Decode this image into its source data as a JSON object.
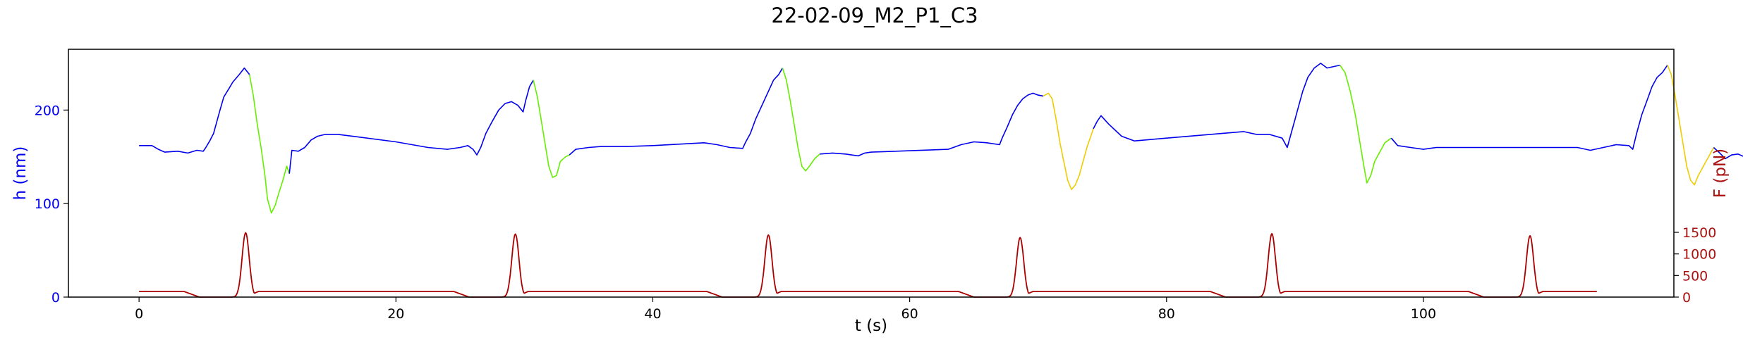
{
  "chart_data": {
    "type": "line",
    "title": "22-02-09_M2_P1_C3",
    "xlabel": "t (s)",
    "ylabel_left": "h (nm)",
    "ylabel_right": "F (pN)",
    "xlim": [
      -5.5,
      119.5
    ],
    "ylim_left": [
      0,
      265
    ],
    "ylim_right": [
      0,
      5740
    ],
    "x_ticks": [
      0,
      20,
      40,
      60,
      80,
      100
    ],
    "y_ticks_left": [
      0,
      100,
      200
    ],
    "y_ticks_right": [
      0,
      500,
      1000,
      1500
    ],
    "grid": false,
    "colors": {
      "height": "#0000ee",
      "force": "#aa0000",
      "green_segment": "#66ee00",
      "yellow_segment": "#eecc00",
      "left_axis": "#0000ee",
      "right_axis": "#aa1111"
    },
    "series": [
      {
        "axis": "left",
        "segments": [
          {
            "color": "blue",
            "points": [
              [
                0,
                162
              ],
              [
                1,
                162
              ],
              [
                1.5,
                158
              ],
              [
                2,
                155
              ],
              [
                3,
                156
              ],
              [
                3.8,
                154
              ],
              [
                4.5,
                157
              ],
              [
                5,
                156
              ],
              [
                5.2,
                160
              ],
              [
                5.5,
                167
              ],
              [
                5.8,
                175
              ],
              [
                6,
                185
              ],
              [
                6.3,
                200
              ],
              [
                6.6,
                214
              ],
              [
                7,
                223
              ],
              [
                7.3,
                230
              ],
              [
                7.8,
                238
              ],
              [
                8.2,
                245
              ],
              [
                8.6,
                238
              ]
            ]
          },
          {
            "color": "green",
            "points": [
              [
                8.6,
                238
              ],
              [
                8.9,
                215
              ],
              [
                9.2,
                185
              ],
              [
                9.5,
                160
              ],
              [
                9.8,
                130
              ],
              [
                10,
                105
              ],
              [
                10.3,
                90
              ],
              [
                10.6,
                98
              ],
              [
                10.9,
                112
              ],
              [
                11.2,
                125
              ],
              [
                11.5,
                140
              ],
              [
                11.7,
                132
              ]
            ]
          },
          {
            "color": "blue",
            "points": [
              [
                11.7,
                132
              ],
              [
                11.9,
                157
              ],
              [
                12.4,
                156
              ],
              [
                12.9,
                160
              ],
              [
                13.4,
                168
              ],
              [
                13.9,
                172
              ],
              [
                14.5,
                174
              ],
              [
                15.5,
                174
              ],
              [
                20,
                166
              ],
              [
                22.5,
                160
              ],
              [
                24,
                158
              ],
              [
                25,
                160
              ],
              [
                25.6,
                162
              ],
              [
                26,
                158
              ],
              [
                26.3,
                152
              ],
              [
                26.6,
                160
              ],
              [
                27,
                175
              ],
              [
                27.5,
                188
              ],
              [
                28,
                200
              ],
              [
                28.5,
                207
              ],
              [
                29,
                209
              ],
              [
                29.5,
                205
              ],
              [
                29.9,
                198
              ],
              [
                30.1,
                210
              ],
              [
                30.4,
                225
              ],
              [
                30.7,
                232
              ]
            ]
          },
          {
            "color": "green",
            "points": [
              [
                30.7,
                232
              ],
              [
                31,
                215
              ],
              [
                31.3,
                190
              ],
              [
                31.6,
                165
              ],
              [
                31.9,
                140
              ],
              [
                32.2,
                128
              ],
              [
                32.5,
                130
              ],
              [
                32.8,
                145
              ],
              [
                33.2,
                150
              ],
              [
                33.5,
                152
              ]
            ]
          },
          {
            "color": "blue",
            "points": [
              [
                33.5,
                152
              ],
              [
                34,
                158
              ],
              [
                35,
                160
              ],
              [
                36,
                161
              ],
              [
                38,
                161
              ],
              [
                40,
                162
              ],
              [
                44,
                165
              ],
              [
                45,
                163
              ],
              [
                46,
                160
              ],
              [
                47,
                159
              ],
              [
                47.2,
                165
              ],
              [
                47.6,
                175
              ],
              [
                48,
                190
              ],
              [
                48.5,
                205
              ],
              [
                49,
                220
              ],
              [
                49.4,
                232
              ],
              [
                49.8,
                238
              ],
              [
                50.1,
                245
              ]
            ]
          },
          {
            "color": "green",
            "points": [
              [
                50.1,
                245
              ],
              [
                50.4,
                232
              ],
              [
                50.7,
                210
              ],
              [
                51,
                185
              ],
              [
                51.3,
                160
              ],
              [
                51.6,
                140
              ],
              [
                51.9,
                135
              ],
              [
                52.2,
                140
              ],
              [
                52.6,
                148
              ],
              [
                53,
                153
              ]
            ]
          },
          {
            "color": "blue",
            "points": [
              [
                53,
                153
              ],
              [
                54,
                154
              ],
              [
                55,
                153
              ],
              [
                56,
                151
              ],
              [
                56.5,
                154
              ],
              [
                57,
                155
              ],
              [
                63,
                158
              ],
              [
                64,
                163
              ],
              [
                65,
                166
              ],
              [
                66,
                165
              ],
              [
                67,
                163
              ],
              [
                67.2,
                170
              ],
              [
                67.6,
                182
              ],
              [
                68,
                195
              ],
              [
                68.4,
                205
              ],
              [
                68.8,
                212
              ],
              [
                69.2,
                216
              ],
              [
                69.6,
                218
              ],
              [
                70,
                216
              ],
              [
                70.4,
                215
              ]
            ]
          },
          {
            "color": "yellow",
            "points": [
              [
                70.4,
                215
              ],
              [
                70.8,
                218
              ],
              [
                71.1,
                212
              ],
              [
                71.4,
                190
              ],
              [
                71.7,
                165
              ],
              [
                72,
                145
              ],
              [
                72.3,
                125
              ],
              [
                72.6,
                115
              ],
              [
                72.9,
                120
              ],
              [
                73.2,
                130
              ],
              [
                73.5,
                145
              ],
              [
                73.8,
                160
              ],
              [
                74.1,
                172
              ],
              [
                74.3,
                180
              ]
            ]
          },
          {
            "color": "blue",
            "points": [
              [
                74.3,
                180
              ],
              [
                74.6,
                188
              ],
              [
                74.9,
                194
              ],
              [
                75.5,
                185
              ],
              [
                76.5,
                172
              ],
              [
                77.5,
                167
              ],
              [
                80,
                170
              ],
              [
                86,
                177
              ],
              [
                87,
                174
              ],
              [
                88,
                174
              ],
              [
                89,
                170
              ],
              [
                89.4,
                160
              ],
              [
                89.7,
                175
              ],
              [
                90,
                190
              ],
              [
                90.3,
                205
              ],
              [
                90.6,
                220
              ],
              [
                91,
                235
              ],
              [
                91.5,
                245
              ],
              [
                92,
                250
              ],
              [
                92.5,
                245
              ],
              [
                93.5,
                248
              ]
            ]
          },
          {
            "color": "green",
            "points": [
              [
                93.5,
                248
              ],
              [
                93.9,
                240
              ],
              [
                94.3,
                220
              ],
              [
                94.7,
                195
              ],
              [
                95,
                170
              ],
              [
                95.3,
                145
              ],
              [
                95.6,
                122
              ],
              [
                95.9,
                130
              ],
              [
                96.2,
                145
              ],
              [
                96.6,
                155
              ],
              [
                97,
                165
              ],
              [
                97.5,
                170
              ]
            ]
          },
          {
            "color": "blue",
            "points": [
              [
                97.5,
                170
              ],
              [
                98,
                162
              ],
              [
                99,
                160
              ],
              [
                100,
                158
              ],
              [
                101,
                160
              ],
              [
                112,
                160
              ],
              [
                113,
                157
              ],
              [
                114,
                160
              ],
              [
                115,
                163
              ],
              [
                116,
                162
              ],
              [
                116.3,
                158
              ],
              [
                116.6,
                175
              ],
              [
                117,
                195
              ],
              [
                117.4,
                210
              ],
              [
                117.8,
                225
              ],
              [
                118.2,
                235
              ],
              [
                118.6,
                240
              ],
              [
                119,
                248
              ]
            ]
          },
          {
            "color": "yellow",
            "points": [
              [
                119,
                248
              ],
              [
                119.3,
                238
              ],
              [
                119.6,
                215
              ],
              [
                119.9,
                190
              ],
              [
                120.2,
                165
              ],
              [
                120.5,
                140
              ],
              [
                120.8,
                125
              ],
              [
                121.1,
                120
              ],
              [
                121.4,
                130
              ],
              [
                121.8,
                140
              ],
              [
                122.2,
                150
              ],
              [
                122.6,
                160
              ]
            ]
          },
          {
            "color": "blue",
            "points": [
              [
                122.6,
                160
              ],
              [
                123,
                155
              ],
              [
                123.5,
                148
              ],
              [
                124,
                152
              ],
              [
                124.5,
                153
              ],
              [
                125,
                150
              ],
              [
                126,
                148
              ],
              [
                127,
                150
              ],
              [
                128,
                152
              ]
            ]
          }
        ]
      },
      {
        "axis": "right",
        "name": "",
        "peaks": [
          8.3,
          29.3,
          49.0,
          68.6,
          88.2,
          108.3
        ],
        "peak_values": [
          1490,
          1460,
          1440,
          1380,
          1470,
          1420
        ],
        "baseline": 130,
        "x_end": 113.5
      }
    ]
  }
}
